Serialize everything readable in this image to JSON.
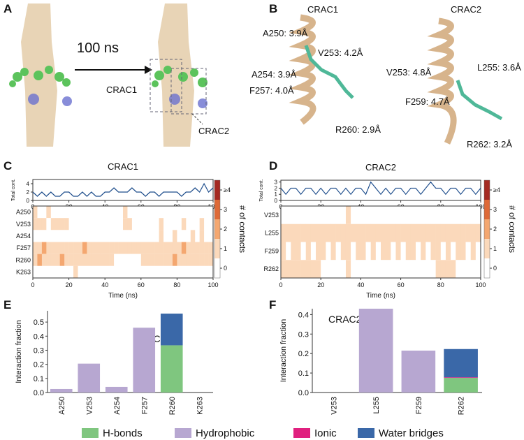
{
  "panel_labels": [
    "A",
    "B",
    "C",
    "D",
    "E",
    "F"
  ],
  "panel_a": {
    "arrow_label": "100 ns",
    "labels": [
      "CRAC1",
      "CRAC2"
    ]
  },
  "panel_b": {
    "titles": [
      "CRAC1",
      "CRAC2"
    ],
    "distances": [
      "A250: 3.9Å",
      "V253: 4.2Å",
      "A254: 3.9Å",
      "F257: 4.0Å",
      "R260: 2.9Å",
      "V253: 4.8Å",
      "L255: 3.6Å",
      "F259: 4.7Å",
      "R262: 3.2Å"
    ]
  },
  "chart_data": [
    {
      "type": "line",
      "title": "CRAC1",
      "y_label": "Total cont.",
      "color": "#1f4e8c",
      "x": [
        0,
        2.5,
        5,
        7.5,
        10,
        12.5,
        15,
        17.5,
        20,
        22.5,
        25,
        27.5,
        30,
        32.5,
        35,
        37.5,
        40,
        42.5,
        45,
        47.5,
        50,
        52.5,
        55,
        57.5,
        60,
        62.5,
        65,
        67.5,
        70,
        72.5,
        75,
        77.5,
        80,
        82.5,
        85,
        87.5,
        90,
        92.5,
        95,
        97.5,
        100
      ],
      "values": [
        2,
        1,
        2,
        1,
        2,
        1,
        1,
        2,
        2,
        1,
        1,
        2,
        1,
        2,
        1,
        1,
        2,
        2,
        3,
        2,
        2,
        2,
        3,
        2,
        2,
        1,
        2,
        2,
        1,
        2,
        2,
        2,
        2,
        1,
        2,
        2,
        3,
        2,
        4,
        2,
        3
      ],
      "xlim": [
        0,
        100
      ],
      "xticks": [
        0,
        20,
        40,
        60,
        80,
        100
      ],
      "ylim": [
        0,
        5
      ],
      "yticks": [
        0,
        2,
        4
      ]
    },
    {
      "type": "heatmap",
      "x_label": "Time (ns)",
      "xlim": [
        0,
        100
      ],
      "xticks": [
        0,
        20,
        40,
        60,
        80,
        100
      ],
      "rows": [
        "A250",
        "V253",
        "A254",
        "F257",
        "R260",
        "K263"
      ],
      "values": [
        [
          1,
          0,
          0,
          1,
          0,
          0,
          0,
          0,
          0,
          0,
          0,
          0,
          0,
          0,
          0,
          0,
          0,
          0,
          0,
          0,
          1,
          0,
          0,
          0,
          0,
          0,
          0,
          0,
          0,
          0,
          0,
          0,
          0,
          0,
          0,
          0,
          0,
          0,
          0,
          0
        ],
        [
          1,
          1,
          1,
          0,
          1,
          1,
          1,
          1,
          0,
          0,
          0,
          0,
          0,
          0,
          0,
          0,
          0,
          0,
          0,
          0,
          1,
          1,
          0,
          0,
          0,
          0,
          0,
          0,
          1,
          0,
          0,
          0,
          0,
          1,
          0,
          0,
          0,
          1,
          0,
          0
        ],
        [
          0,
          0,
          0,
          0,
          0,
          0,
          0,
          0,
          0,
          0,
          0,
          0,
          0,
          0,
          0,
          0,
          0,
          0,
          0,
          0,
          0,
          0,
          0,
          0,
          0,
          0,
          0,
          0,
          1,
          0,
          0,
          1,
          0,
          0,
          0,
          1,
          0,
          1,
          0,
          0
        ],
        [
          1,
          1,
          2,
          1,
          1,
          1,
          1,
          1,
          1,
          1,
          1,
          2,
          1,
          1,
          1,
          1,
          1,
          1,
          1,
          1,
          1,
          1,
          1,
          1,
          1,
          1,
          1,
          1,
          1,
          1,
          1,
          1,
          1,
          2,
          1,
          1,
          1,
          1,
          1,
          1
        ],
        [
          1,
          2,
          1,
          1,
          1,
          1,
          2,
          1,
          1,
          1,
          1,
          1,
          1,
          1,
          1,
          1,
          1,
          1,
          0,
          0,
          0,
          0,
          0,
          0,
          1,
          1,
          1,
          1,
          1,
          1,
          1,
          2,
          1,
          1,
          1,
          1,
          1,
          1,
          1,
          1
        ],
        [
          0,
          0,
          0,
          0,
          0,
          0,
          0,
          0,
          0,
          1,
          0,
          0,
          0,
          0,
          0,
          0,
          0,
          0,
          0,
          0,
          0,
          0,
          0,
          0,
          0,
          0,
          0,
          0,
          0,
          0,
          0,
          0,
          0,
          0,
          0,
          0,
          0,
          0,
          0,
          0
        ]
      ],
      "colorbar": {
        "label": "# of contacts",
        "lim": [
          -0.5,
          4.5
        ],
        "ticks": [
          0,
          1,
          2,
          3,
          {
            "value": 4,
            "label": "≥4"
          }
        ],
        "colors": [
          "#ffffff",
          "#fbd9bb",
          "#f4a770",
          "#de6a38",
          "#a52a22"
        ]
      }
    },
    {
      "type": "line",
      "title": "CRAC2",
      "y_label": "Total cont.",
      "color": "#1f4e8c",
      "x": [
        0,
        2.5,
        5,
        7.5,
        10,
        12.5,
        15,
        17.5,
        20,
        22.5,
        25,
        27.5,
        30,
        32.5,
        35,
        37.5,
        40,
        42.5,
        45,
        47.5,
        50,
        52.5,
        55,
        57.5,
        60,
        62.5,
        65,
        67.5,
        70,
        72.5,
        75,
        77.5,
        80,
        82.5,
        85,
        87.5,
        90,
        92.5,
        95,
        97.5,
        100
      ],
      "values": [
        2,
        1,
        2,
        2,
        1,
        2,
        2,
        1,
        2,
        1,
        2,
        2,
        1,
        2,
        1,
        2,
        2,
        1,
        3,
        2,
        1,
        2,
        1,
        2,
        2,
        1,
        2,
        2,
        1,
        2,
        3,
        2,
        2,
        1,
        2,
        2,
        1,
        2,
        2,
        1,
        2
      ],
      "xlim": [
        0,
        100
      ],
      "xticks": [
        0,
        20,
        40,
        60,
        80,
        100
      ],
      "ylim": [
        0,
        3.3
      ],
      "yticks": [
        0,
        1,
        2,
        3
      ]
    },
    {
      "type": "heatmap",
      "x_label": "Time (ns)",
      "xlim": [
        0,
        100
      ],
      "xticks": [
        0,
        20,
        40,
        60,
        80,
        100
      ],
      "rows": [
        "V253",
        "L255",
        "F259",
        "R262"
      ],
      "values": [
        [
          0,
          0,
          0,
          0,
          0,
          0,
          0,
          0,
          0,
          0,
          0,
          0,
          0,
          1,
          0,
          0,
          0,
          0,
          0,
          0,
          0,
          0,
          0,
          0,
          0,
          0,
          0,
          0,
          0,
          0,
          0,
          0,
          0,
          0,
          0,
          0,
          0,
          0,
          0,
          0
        ],
        [
          1,
          1,
          1,
          1,
          1,
          1,
          1,
          1,
          1,
          1,
          1,
          1,
          1,
          1,
          1,
          1,
          1,
          1,
          1,
          1,
          1,
          1,
          1,
          1,
          1,
          1,
          1,
          1,
          1,
          1,
          1,
          1,
          1,
          1,
          1,
          1,
          1,
          1,
          1,
          1
        ],
        [
          1,
          0,
          1,
          1,
          0,
          1,
          0,
          1,
          1,
          0,
          1,
          0,
          1,
          1,
          0,
          1,
          1,
          0,
          1,
          0,
          1,
          1,
          0,
          1,
          0,
          1,
          1,
          0,
          1,
          0,
          1,
          1,
          0,
          1,
          0,
          1,
          1,
          0,
          1,
          0
        ],
        [
          1,
          1,
          1,
          1,
          1,
          1,
          1,
          1,
          0,
          0,
          0,
          0,
          0,
          1,
          0,
          0,
          0,
          0,
          0,
          0,
          0,
          0,
          0,
          0,
          0,
          0,
          0,
          0,
          0,
          0,
          0,
          1,
          1,
          1,
          1,
          0,
          0,
          0,
          0,
          0
        ]
      ],
      "colorbar": {
        "label": "# of contacts",
        "lim": [
          -0.5,
          4.5
        ],
        "ticks": [
          0,
          1,
          2,
          3,
          {
            "value": 4,
            "label": "≥4"
          }
        ],
        "colors": [
          "#ffffff",
          "#fbd9bb",
          "#f4a770",
          "#de6a38",
          "#a52a22"
        ]
      }
    },
    {
      "type": "bar",
      "title": "CRAC1",
      "y_label": "Interaction fraction",
      "categories": [
        "A250",
        "V253",
        "A254",
        "F257",
        "R260",
        "K263"
      ],
      "series": [
        {
          "name": "H-bonds",
          "color": "#7fc67f",
          "values": [
            0,
            0,
            0,
            0,
            0.335,
            0
          ]
        },
        {
          "name": "Hydrophobic",
          "color": "#b7a7d1",
          "values": [
            0.025,
            0.205,
            0.04,
            0.46,
            0,
            0
          ]
        },
        {
          "name": "Ionic",
          "color": "#e0207f",
          "values": [
            0,
            0,
            0,
            0,
            0,
            0
          ]
        },
        {
          "name": "Water bridges",
          "color": "#3a68a8",
          "values": [
            0,
            0,
            0,
            0,
            0.225,
            0
          ]
        }
      ],
      "ylim": [
        0,
        0.58
      ],
      "yticks": [
        {
          "value": 0,
          "label": "0.0"
        },
        0.1,
        0.2,
        0.3,
        0.4,
        0.5
      ]
    },
    {
      "type": "bar",
      "title": "CRAC2",
      "y_label": "Interaction fraction",
      "categories": [
        "V253",
        "L255",
        "F259",
        "R262"
      ],
      "series": [
        {
          "color": "#7fc67f",
          "values": [
            0,
            0,
            0,
            0.075
          ]
        },
        {
          "color": "#b7a7d1",
          "values": [
            0,
            0.43,
            0.215,
            0
          ]
        },
        {
          "color": "#e0207f",
          "values": [
            0,
            0,
            0,
            0.003
          ]
        },
        {
          "color": "#3a68a8",
          "values": [
            0,
            0,
            0,
            0.145
          ]
        }
      ],
      "ylim": [
        0,
        0.43
      ],
      "yticks": [
        {
          "value": 0,
          "label": "0.0"
        },
        0.1,
        0.2,
        0.3,
        0.4
      ]
    }
  ]
}
